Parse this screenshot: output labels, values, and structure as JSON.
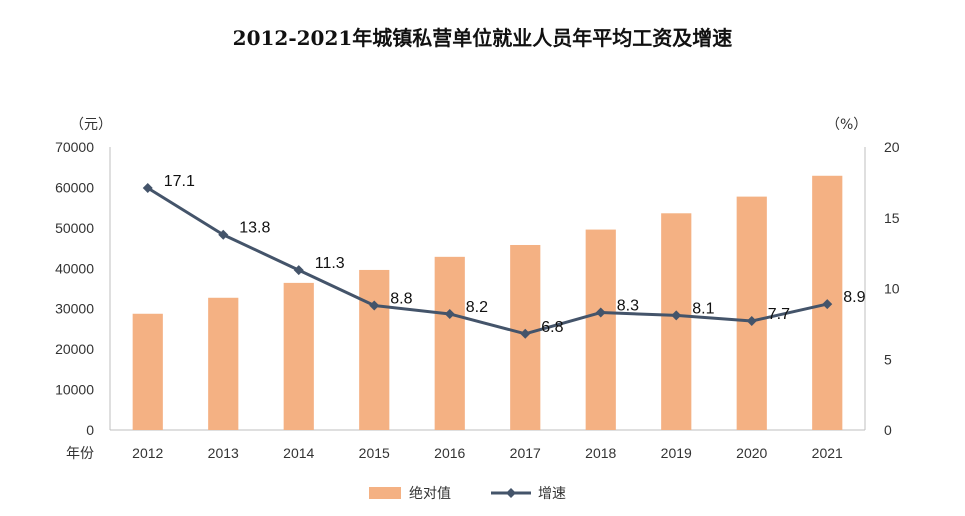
{
  "chart_data": {
    "type": "bar+line",
    "title": "2012-2021年城镇私营单位就业人员年平均工资及增速",
    "categories": [
      "2012",
      "2013",
      "2014",
      "2015",
      "2016",
      "2017",
      "2018",
      "2019",
      "2020",
      "2021"
    ],
    "x_axis_label": "年份",
    "left_axis": {
      "unit_label": "（元）",
      "range": [
        0,
        70000
      ],
      "ticks": [
        0,
        10000,
        20000,
        30000,
        40000,
        50000,
        60000,
        70000
      ]
    },
    "right_axis": {
      "unit_label": "（%）",
      "range": [
        0,
        20
      ],
      "ticks": [
        0,
        5,
        10,
        15,
        20
      ]
    },
    "series": [
      {
        "name": "绝对值",
        "type": "bar",
        "axis": "left",
        "color": "#F4B183",
        "values": [
          28752,
          32706,
          36390,
          39589,
          42833,
          45761,
          49575,
          53604,
          57727,
          62884
        ]
      },
      {
        "name": "增速",
        "type": "line",
        "axis": "right",
        "color": "#44546A",
        "values": [
          17.1,
          13.8,
          11.3,
          8.8,
          8.2,
          6.8,
          8.3,
          8.1,
          7.7,
          8.9
        ],
        "labels": [
          "17.1",
          "13.8",
          "11.3",
          "8.8",
          "8.2",
          "6.8",
          "8.3",
          "8.1",
          "7.7",
          "8.9"
        ]
      }
    ],
    "legend": [
      "绝对值",
      "增速"
    ],
    "legend_position": "bottom"
  }
}
